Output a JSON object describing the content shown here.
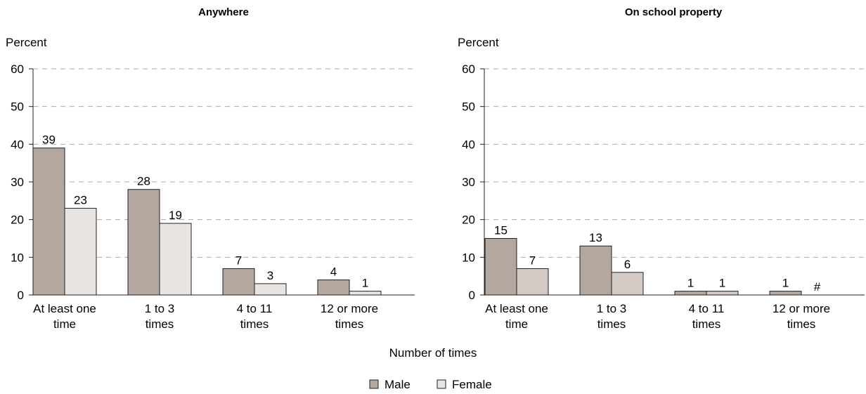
{
  "chart_data": [
    {
      "type": "bar",
      "title": "Anywhere",
      "ylabel": "Percent",
      "ylim": [
        0,
        60
      ],
      "yticks": [
        0,
        10,
        20,
        30,
        40,
        50,
        60
      ],
      "grid": true,
      "categories": [
        [
          "At least one",
          "time"
        ],
        [
          "1 to 3",
          "times"
        ],
        [
          "4 to 11",
          "times"
        ],
        [
          "12 or more",
          "times"
        ]
      ],
      "series": [
        {
          "name": "Male",
          "values": [
            39,
            28,
            7,
            4
          ],
          "labels": [
            "39",
            "28",
            "7",
            "4"
          ],
          "color": "#b3a7a0"
        },
        {
          "name": "Female",
          "values": [
            23,
            19,
            3,
            1
          ],
          "labels": [
            "23",
            "19",
            "3",
            "1"
          ],
          "color": "#e8e4e1"
        }
      ]
    },
    {
      "type": "bar",
      "title": "On school property",
      "ylabel": "Percent",
      "ylim": [
        0,
        60
      ],
      "yticks": [
        0,
        10,
        20,
        30,
        40,
        50,
        60
      ],
      "grid": true,
      "categories": [
        [
          "At least one",
          "time"
        ],
        [
          "1 to 3",
          "times"
        ],
        [
          "4 to 11",
          "times"
        ],
        [
          "12 or more",
          "times"
        ]
      ],
      "series": [
        {
          "name": "Male",
          "values": [
            15,
            13,
            1,
            1
          ],
          "labels": [
            "15",
            "13",
            "1",
            "1"
          ],
          "color": "#b3a7a0"
        },
        {
          "name": "Female",
          "values": [
            7,
            6,
            1,
            0
          ],
          "labels": [
            "7",
            "6",
            "1",
            "#"
          ],
          "color": "#d3cac6"
        }
      ]
    }
  ],
  "shared_xlabel": "Number of times",
  "legend": {
    "placement": "bottom-center",
    "items": [
      {
        "name": "Male",
        "color": "#b3a7a0"
      },
      {
        "name": "Female",
        "color": "#e8e4e1"
      }
    ]
  }
}
